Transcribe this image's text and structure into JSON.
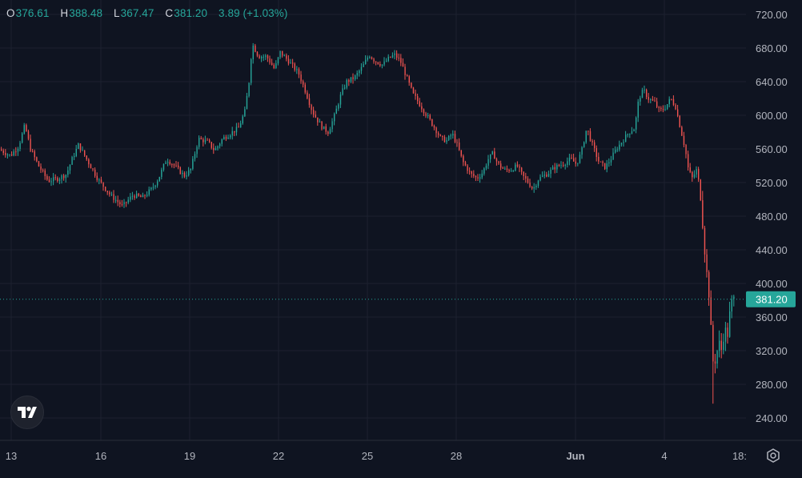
{
  "header": {
    "open_label": "O",
    "open_value": "376.61",
    "high_label": "H",
    "high_value": "388.48",
    "low_label": "L",
    "low_value": "367.47",
    "close_label": "C",
    "close_value": "381.20",
    "change": "3.89 (+1.03%)"
  },
  "colors": {
    "background": "#0f1421",
    "up": "#26a69a",
    "down": "#ef5350",
    "grid": "#1c2130",
    "axis_text": "#b2b5be",
    "price_tag": "#26a69a"
  },
  "icons": {
    "logo": "tradingview-logo-icon",
    "settings": "settings-gear-icon"
  },
  "chart_data": {
    "type": "candlestick",
    "title": "",
    "ylim": [
      220,
      730
    ],
    "y_ticks": [
      "720.00",
      "680.00",
      "640.00",
      "600.00",
      "560.00",
      "520.00",
      "480.00",
      "440.00",
      "400.00",
      "360.00",
      "320.00",
      "280.00",
      "240.00"
    ],
    "x_ticks": [
      "13",
      "16",
      "19",
      "22",
      "25",
      "28",
      "Jun",
      "4",
      "18:"
    ],
    "last_price": "381.20",
    "grid": true,
    "price_path": [
      [
        0,
        560
      ],
      [
        15,
        552
      ],
      [
        25,
        563
      ],
      [
        33,
        588
      ],
      [
        40,
        560
      ],
      [
        50,
        540
      ],
      [
        62,
        522
      ],
      [
        75,
        525
      ],
      [
        85,
        530
      ],
      [
        92,
        548
      ],
      [
        100,
        565
      ],
      [
        110,
        548
      ],
      [
        125,
        523
      ],
      [
        140,
        505
      ],
      [
        155,
        492
      ],
      [
        168,
        505
      ],
      [
        180,
        502
      ],
      [
        192,
        513
      ],
      [
        200,
        525
      ],
      [
        210,
        548
      ],
      [
        220,
        540
      ],
      [
        232,
        528
      ],
      [
        240,
        535
      ],
      [
        250,
        572
      ],
      [
        262,
        568
      ],
      [
        270,
        558
      ],
      [
        280,
        572
      ],
      [
        292,
        580
      ],
      [
        300,
        585
      ],
      [
        308,
        605
      ],
      [
        313,
        640
      ],
      [
        317,
        685
      ],
      [
        325,
        670
      ],
      [
        335,
        670
      ],
      [
        345,
        655
      ],
      [
        352,
        675
      ],
      [
        362,
        665
      ],
      [
        375,
        650
      ],
      [
        385,
        625
      ],
      [
        392,
        605
      ],
      [
        398,
        595
      ],
      [
        405,
        585
      ],
      [
        412,
        580
      ],
      [
        420,
        600
      ],
      [
        428,
        625
      ],
      [
        435,
        640
      ],
      [
        445,
        645
      ],
      [
        455,
        658
      ],
      [
        463,
        672
      ],
      [
        470,
        665
      ],
      [
        480,
        660
      ],
      [
        488,
        668
      ],
      [
        495,
        672
      ],
      [
        502,
        665
      ],
      [
        510,
        645
      ],
      [
        518,
        625
      ],
      [
        525,
        615
      ],
      [
        535,
        600
      ],
      [
        545,
        585
      ],
      [
        553,
        572
      ],
      [
        560,
        570
      ],
      [
        567,
        578
      ],
      [
        573,
        565
      ],
      [
        580,
        545
      ],
      [
        590,
        530
      ],
      [
        598,
        525
      ],
      [
        605,
        532
      ],
      [
        612,
        548
      ],
      [
        618,
        555
      ],
      [
        624,
        542
      ],
      [
        632,
        535
      ],
      [
        640,
        535
      ],
      [
        648,
        540
      ],
      [
        655,
        528
      ],
      [
        662,
        520
      ],
      [
        668,
        512
      ],
      [
        675,
        525
      ],
      [
        685,
        530
      ],
      [
        695,
        538
      ],
      [
        705,
        542
      ],
      [
        715,
        548
      ],
      [
        722,
        542
      ],
      [
        728,
        555
      ],
      [
        735,
        585
      ],
      [
        742,
        565
      ],
      [
        750,
        545
      ],
      [
        758,
        538
      ],
      [
        765,
        548
      ],
      [
        772,
        560
      ],
      [
        780,
        570
      ],
      [
        788,
        580
      ],
      [
        795,
        585
      ],
      [
        800,
        620
      ],
      [
        806,
        630
      ],
      [
        812,
        620
      ],
      [
        820,
        615
      ],
      [
        826,
        605
      ],
      [
        832,
        608
      ],
      [
        840,
        620
      ],
      [
        846,
        610
      ],
      [
        852,
        585
      ],
      [
        858,
        560
      ],
      [
        862,
        535
      ],
      [
        867,
        525
      ],
      [
        872,
        535
      ],
      [
        876,
        515
      ],
      [
        880,
        470
      ],
      [
        884,
        420
      ],
      [
        888,
        385
      ],
      [
        891,
        330
      ],
      [
        893,
        305
      ],
      [
        896,
        310
      ],
      [
        900,
        330
      ],
      [
        903,
        320
      ],
      [
        907,
        345
      ],
      [
        911,
        340
      ],
      [
        915,
        375
      ],
      [
        918,
        381
      ]
    ]
  }
}
